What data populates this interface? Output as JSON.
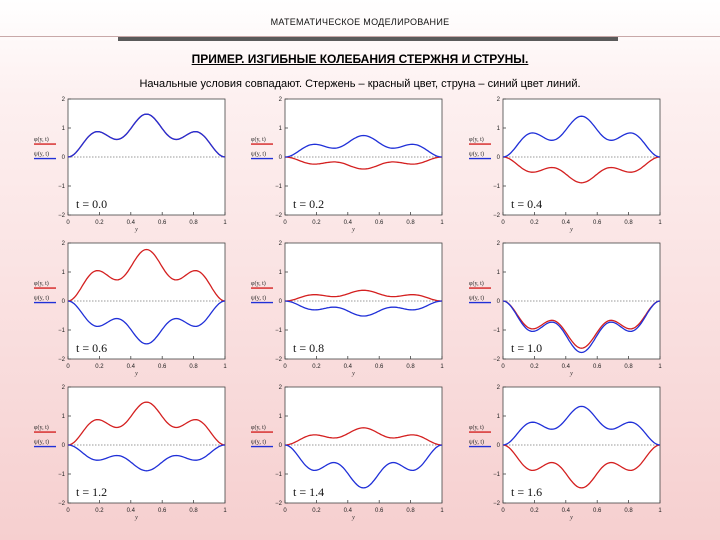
{
  "header": {
    "section": "МАТЕМАТИЧЕСКОЕ МОДЕЛИРОВАНИЕ"
  },
  "slide": {
    "title": "ПРИМЕР. ИЗГИБНЫЕ КОЛЕБАНИЯ СТЕРЖНЯ И СТРУНЫ.",
    "subtitle": "Начальные условия совпадают. Стержень – красный цвет, струна – синий цвет линий."
  },
  "colors": {
    "rod": "#d42020",
    "string": "#2030d8",
    "accent": "#5a5a5a"
  },
  "chart_data": {
    "type": "line",
    "xlabel": "y",
    "legend": {
      "rod": "φ(y, t)",
      "string": "ψ(y, t)"
    },
    "ylim": [
      -2,
      2
    ],
    "xlim": [
      0,
      1
    ],
    "x_ticks": [
      "0",
      "0.2",
      "0.4",
      "0.6",
      "0.8",
      "1"
    ],
    "y_ticks": [
      "2",
      "1",
      "0",
      "−1",
      "−2"
    ],
    "panels": [
      {
        "label": "t = 0.0",
        "rod_amp": 1,
        "string_amp": 1
      },
      {
        "label": "t = 0.2",
        "rod_amp": -0.28,
        "string_amp": 0.5
      },
      {
        "label": "t = 0.4",
        "rod_amp": -0.6,
        "string_amp": 0.95
      },
      {
        "label": "t = 0.6",
        "rod_amp": 1.2,
        "string_amp": -1.0
      },
      {
        "label": "t = 0.8",
        "rod_amp": 0.25,
        "string_amp": -0.35
      },
      {
        "label": "t = 1.0",
        "rod_amp": -1.1,
        "string_amp": -1.2
      },
      {
        "label": "t = 1.2",
        "rod_amp": 1.0,
        "string_amp": -0.6
      },
      {
        "label": "t = 1.4",
        "rod_amp": 0.4,
        "string_amp": -1.0
      },
      {
        "label": "t = 1.6",
        "rod_amp": -1.0,
        "string_amp": 0.9
      }
    ]
  }
}
